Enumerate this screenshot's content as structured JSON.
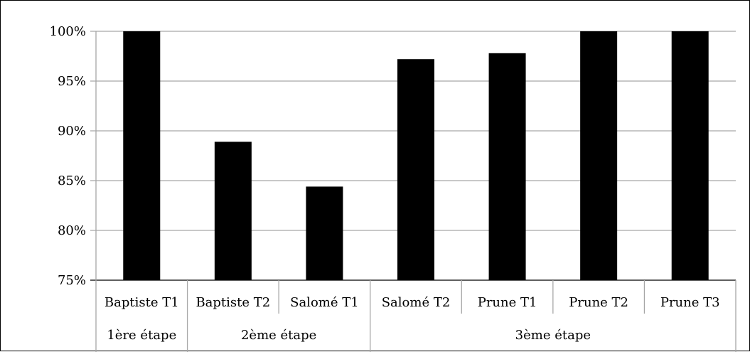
{
  "chart_data": {
    "type": "bar",
    "categories": [
      "Baptiste T1",
      "Baptiste T2",
      "Salomé T1",
      "Salomé T2",
      "Prune T1",
      "Prune T2",
      "Prune T3"
    ],
    "groups": [
      {
        "label": "1ère étape",
        "count": 1
      },
      {
        "label": "2ème étape",
        "count": 2
      },
      {
        "label": "3ème étape",
        "count": 4
      }
    ],
    "values": [
      100,
      88.9,
      84.4,
      97.2,
      97.8,
      100,
      100
    ],
    "ylim": [
      75,
      100
    ],
    "yticks": [
      "75%",
      "80%",
      "85%",
      "90%",
      "95%",
      "100%"
    ],
    "ytick_values": [
      75,
      80,
      85,
      90,
      95,
      100
    ],
    "grid": true,
    "bar_color": "#000000",
    "grid_color": "#a6a6a6"
  }
}
